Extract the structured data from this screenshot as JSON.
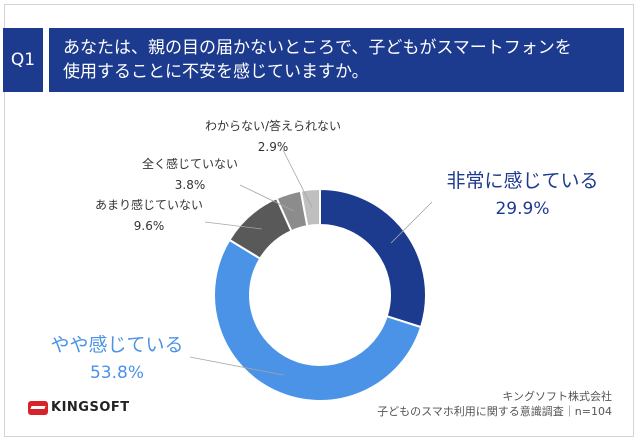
{
  "question": {
    "badge": "Q1",
    "line1": "あなたは、親の目の届かないところで、子どもがスマートフォンを",
    "line2": "使用することに不安を感じていますか。"
  },
  "chart_data": {
    "type": "pie",
    "donut": true,
    "slices": [
      {
        "label": "非常に感じている",
        "value": 29.9,
        "pct_text": "29.9%",
        "color": "#1c3a8e"
      },
      {
        "label": "やや感じている",
        "value": 53.8,
        "pct_text": "53.8%",
        "color": "#4b93e6"
      },
      {
        "label": "あまり感じていない",
        "value": 9.6,
        "pct_text": "9.6%",
        "color": "#595959"
      },
      {
        "label": "全く感じていない",
        "value": 3.8,
        "pct_text": "3.8%",
        "color": "#8c8c8c"
      },
      {
        "label": "わからない/答えられない",
        "value": 2.9,
        "pct_text": "2.9%",
        "color": "#bfbfbf"
      }
    ]
  },
  "footer": {
    "logo": "KINGSOFT",
    "company": "キングソフト株式会社",
    "survey": "子どものスマホ利用に関する意識調査｜n=104"
  }
}
